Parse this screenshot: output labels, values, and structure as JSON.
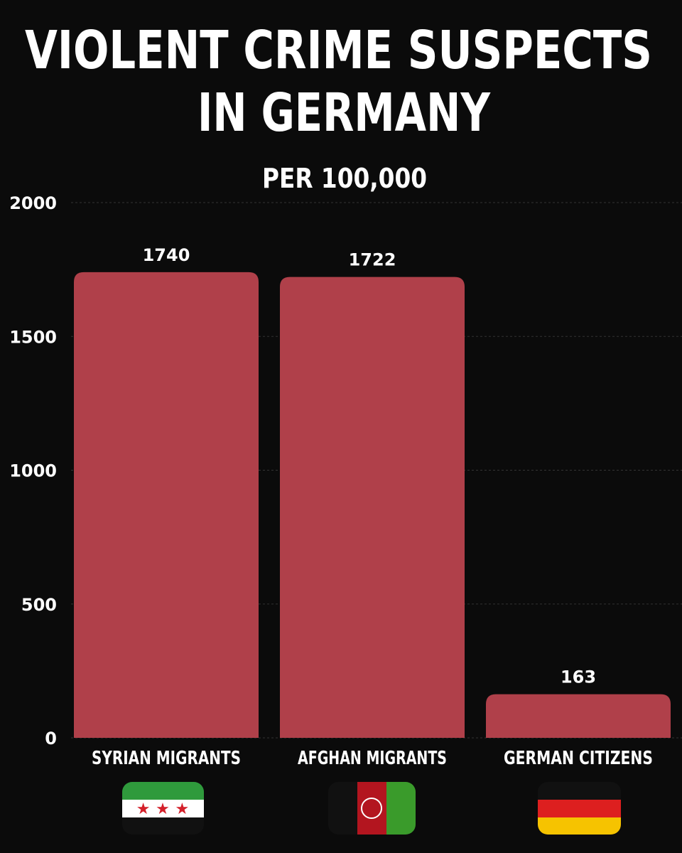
{
  "chart_data": {
    "type": "bar",
    "title": [
      "VIOLENT CRIME SUSPECTS",
      "IN GERMANY"
    ],
    "subtitle": "PER 100,000",
    "categories": [
      "SYRIAN MIGRANTS",
      "AFGHAN MIGRANTS",
      "GERMAN CITIZENS"
    ],
    "values": [
      1740,
      1722,
      163
    ],
    "color": "#b0404a",
    "ylim": [
      0,
      2000
    ],
    "yticks": [
      0,
      500,
      1000,
      1500,
      2000
    ],
    "grid": true
  }
}
